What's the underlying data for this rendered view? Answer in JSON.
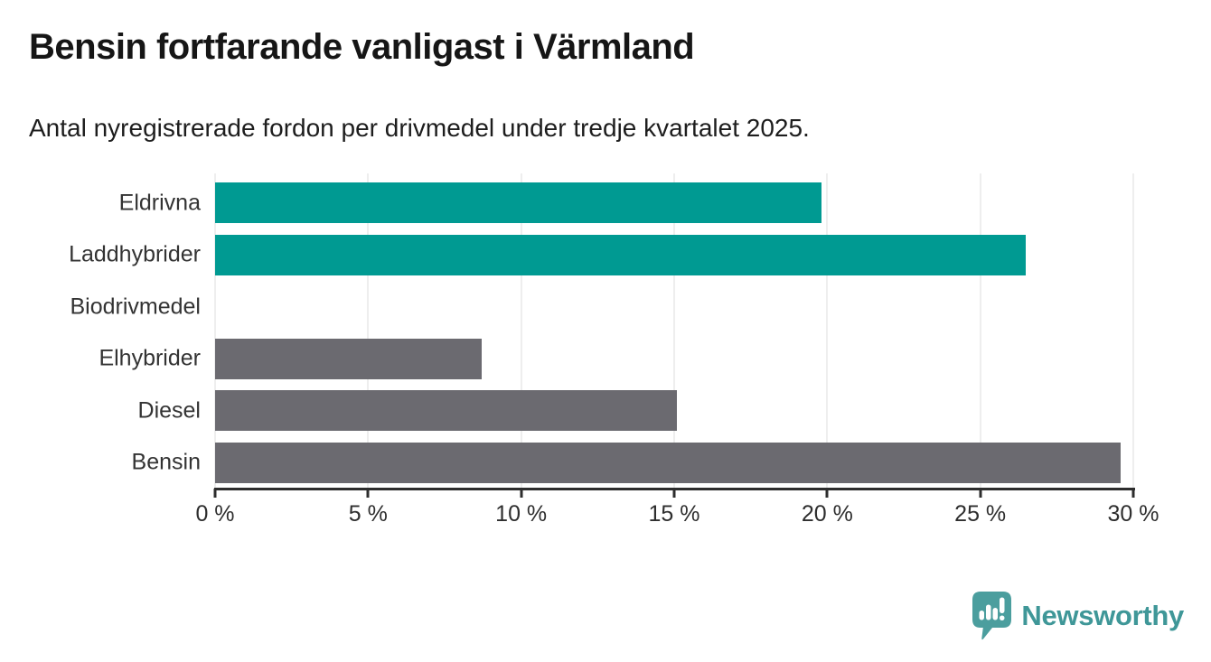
{
  "chart_data": {
    "type": "bar",
    "orientation": "horizontal",
    "title": "Bensin fortfarande vanligast i Värmland",
    "subtitle": "Antal nyregistrerade fordon per drivmedel under tredje kvartalet 2025.",
    "categories": [
      "Eldrivna",
      "Laddhybrider",
      "Biodrivmedel",
      "Elhybrider",
      "Diesel",
      "Bensin"
    ],
    "values": [
      19.8,
      26.5,
      0,
      8.7,
      15.1,
      29.6
    ],
    "bar_colors": [
      "#009a92",
      "#009a92",
      "#6b6a70",
      "#6b6a70",
      "#6b6a70",
      "#6b6a70"
    ],
    "highlight_color": "#009a92",
    "default_color": "#6b6a70",
    "xlabel": "",
    "ylabel": "",
    "xlim": [
      0,
      30
    ],
    "x_ticks": [
      0,
      5,
      10,
      15,
      20,
      25,
      30
    ],
    "x_tick_labels": [
      "0 %",
      "5 %",
      "10 %",
      "15 %",
      "20 %",
      "25 %",
      "30 %"
    ],
    "grid": "vertical-only",
    "gridline_color": "#dedede",
    "axis_color": "#2d2d2d",
    "legend": "none"
  },
  "logo": {
    "text": "Newsworthy",
    "color": "#3f9798",
    "icon": "newsworthy-speech-bubble-bar-chart-icon"
  }
}
